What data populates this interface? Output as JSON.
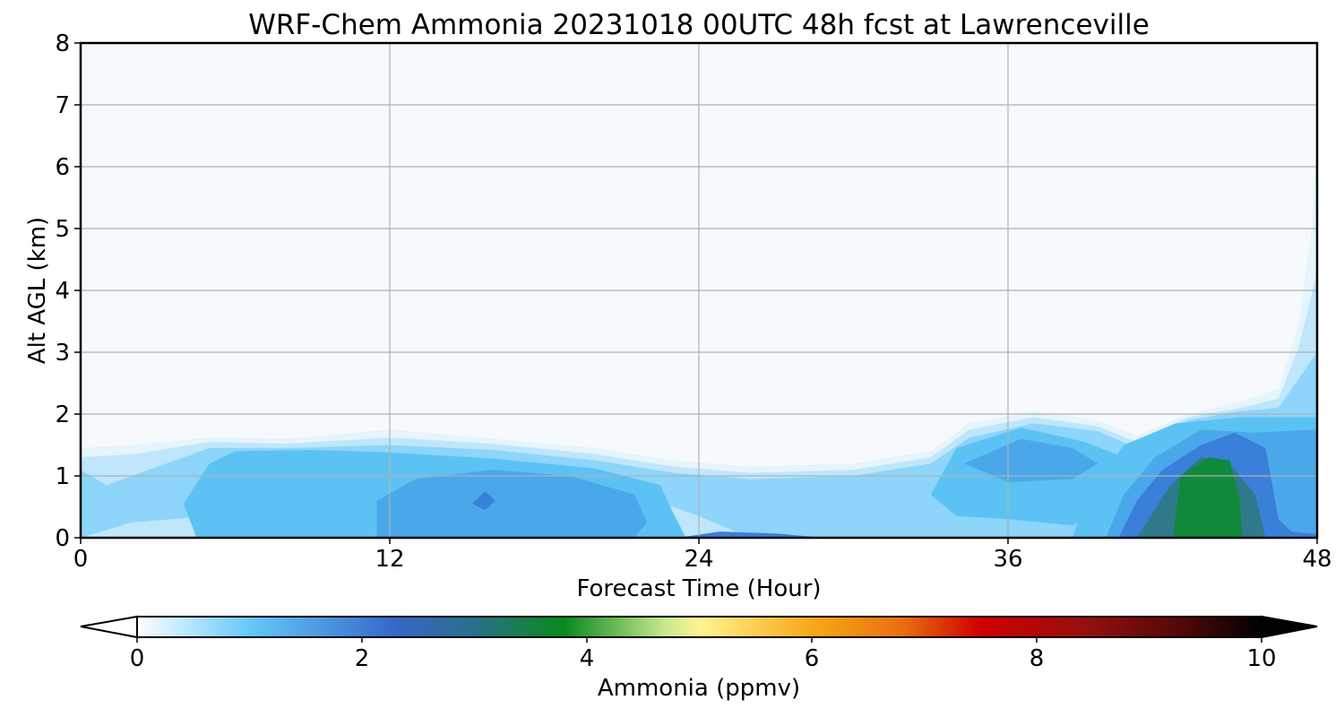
{
  "chart_data": {
    "type": "heatmap",
    "title": "WRF-Chem Ammonia  20231018 00UTC 48h fcst at Lawrenceville",
    "xlabel": "Forecast Time (Hour)",
    "ylabel": "Alt AGL (km)",
    "xlim": [
      0,
      48
    ],
    "ylim": [
      0,
      8
    ],
    "x_ticks": [
      "0",
      "12",
      "24",
      "36",
      "48"
    ],
    "y_ticks": [
      "0",
      "1",
      "2",
      "3",
      "4",
      "5",
      "6",
      "7",
      "8"
    ],
    "grid": true,
    "colorbar": {
      "label": "Ammonia  (ppmv)",
      "min": 0,
      "max": 10,
      "extend": "both",
      "ticks": [
        "0",
        "2",
        "4",
        "6",
        "8",
        "10"
      ],
      "stops": [
        {
          "v": 0,
          "c": "#ffffff"
        },
        {
          "v": 1,
          "c": "#66c8f8"
        },
        {
          "v": 2.3,
          "c": "#3568c8"
        },
        {
          "v": 3.0,
          "c": "#2a6f8a"
        },
        {
          "v": 3.8,
          "c": "#0a8a1c"
        },
        {
          "v": 4.7,
          "c": "#c8e890"
        },
        {
          "v": 5.0,
          "c": "#fff490"
        },
        {
          "v": 6.0,
          "c": "#f8a818"
        },
        {
          "v": 6.8,
          "c": "#e87010"
        },
        {
          "v": 7.5,
          "c": "#d00000"
        },
        {
          "v": 8.5,
          "c": "#901010"
        },
        {
          "v": 9.3,
          "c": "#500808"
        },
        {
          "v": 10,
          "c": "#000000"
        }
      ]
    },
    "levels_ppmv": [
      {
        "name": "background",
        "value": 0.05,
        "color": "#f6fafd"
      },
      {
        "name": "faint",
        "value": 0.25,
        "color": "#e6f4fc"
      },
      {
        "name": "light",
        "value": 0.55,
        "color": "#bfe6fb"
      },
      {
        "name": "mid",
        "value": 1.0,
        "color": "#8dd5fa"
      },
      {
        "name": "sky",
        "value": 1.4,
        "color": "#5cc2f4"
      },
      {
        "name": "blue",
        "value": 1.8,
        "color": "#4aa8ea"
      },
      {
        "name": "darkblue",
        "value": 2.3,
        "color": "#3a7fd9"
      },
      {
        "name": "teal",
        "value": 3.1,
        "color": "#2f7a8a"
      },
      {
        "name": "green",
        "value": 3.8,
        "color": "#0f8a3a"
      }
    ],
    "regions": [
      {
        "level": "faint",
        "pts": [
          [
            0,
            0
          ],
          [
            0,
            1.45
          ],
          [
            2,
            1.5
          ],
          [
            5,
            1.62
          ],
          [
            8,
            1.6
          ],
          [
            12,
            1.75
          ],
          [
            16,
            1.6
          ],
          [
            20,
            1.45
          ],
          [
            23,
            1.25
          ],
          [
            26,
            1.15
          ],
          [
            30,
            1.2
          ],
          [
            33,
            1.4
          ],
          [
            34.5,
            1.85
          ],
          [
            37,
            2.05
          ],
          [
            39.5,
            1.9
          ],
          [
            41,
            1.65
          ],
          [
            43,
            2.0
          ],
          [
            45,
            2.2
          ],
          [
            46.5,
            2.4
          ],
          [
            47.3,
            3.5
          ],
          [
            47.8,
            5.0
          ],
          [
            48,
            6.5
          ],
          [
            48,
            0
          ]
        ]
      },
      {
        "level": "light",
        "pts": [
          [
            0,
            0
          ],
          [
            0,
            1.3
          ],
          [
            2,
            1.35
          ],
          [
            5,
            1.55
          ],
          [
            8,
            1.52
          ],
          [
            12,
            1.62
          ],
          [
            16,
            1.52
          ],
          [
            20,
            1.35
          ],
          [
            23,
            1.15
          ],
          [
            26,
            1.05
          ],
          [
            30,
            1.1
          ],
          [
            33,
            1.3
          ],
          [
            34.5,
            1.75
          ],
          [
            37,
            1.95
          ],
          [
            39.5,
            1.8
          ],
          [
            41,
            1.55
          ],
          [
            43,
            1.95
          ],
          [
            45,
            2.1
          ],
          [
            46.5,
            2.25
          ],
          [
            47.3,
            3.1
          ],
          [
            48,
            4.3
          ],
          [
            48,
            0
          ]
        ]
      },
      {
        "level": "mid",
        "pts": [
          [
            0,
            0
          ],
          [
            0,
            1.1
          ],
          [
            1,
            0.85
          ],
          [
            3,
            1.15
          ],
          [
            5,
            1.45
          ],
          [
            8,
            1.45
          ],
          [
            12,
            1.5
          ],
          [
            16,
            1.42
          ],
          [
            20,
            1.25
          ],
          [
            23,
            1.05
          ],
          [
            26,
            0.95
          ],
          [
            30,
            1.0
          ],
          [
            33,
            1.2
          ],
          [
            34.5,
            1.62
          ],
          [
            37,
            1.85
          ],
          [
            39.5,
            1.72
          ],
          [
            41,
            1.45
          ],
          [
            43,
            1.9
          ],
          [
            45,
            2.05
          ],
          [
            46.5,
            2.1
          ],
          [
            47.5,
            2.7
          ],
          [
            48,
            3.0
          ],
          [
            48,
            0
          ],
          [
            26,
            0
          ],
          [
            24,
            0.35
          ],
          [
            21,
            0.8
          ],
          [
            16,
            0.55
          ],
          [
            12,
            0.5
          ],
          [
            8,
            0.45
          ],
          [
            5,
            0.35
          ],
          [
            2,
            0.25
          ]
        ]
      },
      {
        "level": "sky",
        "pts": [
          [
            4.5,
            0
          ],
          [
            4,
            0.55
          ],
          [
            5,
            1.2
          ],
          [
            6,
            1.4
          ],
          [
            9,
            1.42
          ],
          [
            12,
            1.38
          ],
          [
            16,
            1.28
          ],
          [
            20,
            1.12
          ],
          [
            22.5,
            0.85
          ],
          [
            23,
            0.4
          ],
          [
            23.5,
            0
          ]
        ]
      },
      {
        "level": "blue",
        "pts": [
          [
            11.5,
            0
          ],
          [
            11.5,
            0.6
          ],
          [
            13,
            0.95
          ],
          [
            16,
            1.1
          ],
          [
            19,
            1.0
          ],
          [
            21.5,
            0.7
          ],
          [
            22,
            0.25
          ],
          [
            21.5,
            0
          ]
        ]
      },
      {
        "level": "darkblue",
        "pts": [
          [
            15.2,
            0.55
          ],
          [
            15.7,
            0.75
          ],
          [
            16.1,
            0.6
          ],
          [
            15.7,
            0.45
          ]
        ]
      },
      {
        "level": "sky",
        "pts": [
          [
            33,
            0.7
          ],
          [
            34,
            1.45
          ],
          [
            36.5,
            1.78
          ],
          [
            39,
            1.55
          ],
          [
            40.5,
            1.3
          ],
          [
            40,
            0.55
          ],
          [
            38.5,
            0.2
          ],
          [
            36,
            0.3
          ],
          [
            34,
            0.35
          ]
        ]
      },
      {
        "level": "blue",
        "pts": [
          [
            34.3,
            1.2
          ],
          [
            36.5,
            1.6
          ],
          [
            38.5,
            1.45
          ],
          [
            39.5,
            1.2
          ],
          [
            38.5,
            0.95
          ],
          [
            36,
            0.9
          ]
        ]
      },
      {
        "level": "sky",
        "pts": [
          [
            38.5,
            0
          ],
          [
            39,
            0.6
          ],
          [
            40.5,
            1.5
          ],
          [
            42.5,
            1.85
          ],
          [
            45,
            1.95
          ],
          [
            48,
            1.95
          ],
          [
            48,
            0
          ]
        ]
      },
      {
        "level": "blue",
        "pts": [
          [
            39.8,
            0
          ],
          [
            40.5,
            0.7
          ],
          [
            41.7,
            1.3
          ],
          [
            43.5,
            1.75
          ],
          [
            45.5,
            1.7
          ],
          [
            48,
            1.75
          ],
          [
            48,
            0
          ]
        ]
      },
      {
        "level": "darkblue",
        "pts": [
          [
            40.3,
            0
          ],
          [
            41,
            0.6
          ],
          [
            42,
            1.1
          ],
          [
            43.5,
            1.5
          ],
          [
            44.8,
            1.7
          ],
          [
            46,
            1.45
          ],
          [
            46.5,
            0.3
          ],
          [
            47,
            0.1
          ],
          [
            48,
            0.06
          ],
          [
            48,
            0
          ]
        ]
      },
      {
        "level": "teal",
        "pts": [
          [
            41,
            0
          ],
          [
            42.3,
            0.85
          ],
          [
            43.5,
            1.3
          ],
          [
            44.5,
            1.25
          ],
          [
            45.6,
            0.7
          ],
          [
            46,
            0
          ]
        ]
      },
      {
        "level": "green",
        "pts": [
          [
            42.4,
            0
          ],
          [
            42.7,
            1.0
          ],
          [
            43.8,
            1.3
          ],
          [
            44.6,
            1.25
          ],
          [
            45,
            0.6
          ],
          [
            45.1,
            0
          ]
        ]
      },
      {
        "level": "darkblue",
        "pts": [
          [
            23.2,
            0
          ],
          [
            24.8,
            0.1
          ],
          [
            27,
            0.07
          ],
          [
            28.8,
            0
          ]
        ]
      },
      {
        "level": "light",
        "pts": [
          [
            1,
            0
          ],
          [
            1.5,
            0.08
          ],
          [
            3.5,
            0.05
          ],
          [
            4,
            0
          ]
        ]
      }
    ]
  }
}
